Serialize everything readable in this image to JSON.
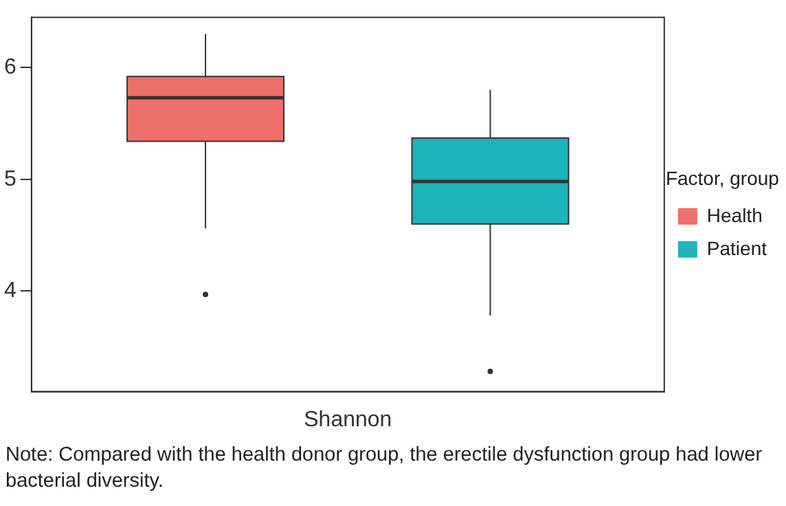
{
  "chart_data": {
    "type": "box",
    "categories": [
      "Shannon"
    ],
    "series": [
      {
        "name": "Health",
        "color": "#ef6f6a",
        "boxes": [
          {
            "low": 4.56,
            "q1": 5.34,
            "median": 5.73,
            "q3": 5.92,
            "high": 6.3,
            "outliers": [
              3.97
            ]
          }
        ]
      },
      {
        "name": "Patient",
        "color": "#1db4ba",
        "boxes": [
          {
            "low": 3.78,
            "q1": 4.6,
            "median": 4.98,
            "q3": 5.37,
            "high": 5.8,
            "outliers": [
              3.28
            ]
          }
        ]
      }
    ],
    "ylim": [
      3.1,
      6.45
    ],
    "yticks": [
      4,
      5,
      6
    ],
    "grid": false,
    "legend": "right",
    "legend_title": "Factor, group",
    "annotations": [
      "Note: Compared with the health donor group, the erectile dysfunction group had lower bacterial diversity."
    ]
  }
}
